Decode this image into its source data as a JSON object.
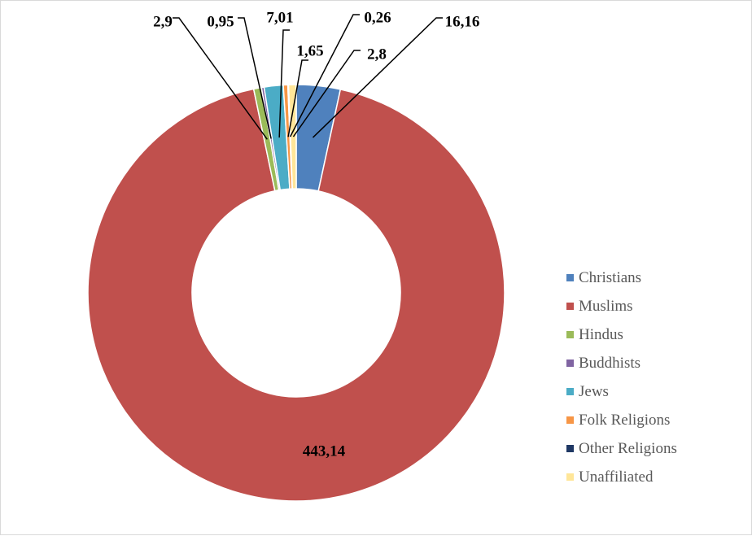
{
  "chart_data": {
    "type": "pie",
    "variant": "donut",
    "title": "",
    "categories": [
      "Christians",
      "Muslims",
      "Hindus",
      "Buddhists",
      "Jews",
      "Folk Religions",
      "Other Religions",
      "Unaffiliated"
    ],
    "values": [
      16.16,
      443.14,
      2.9,
      0.95,
      7.01,
      1.65,
      0.26,
      2.8
    ],
    "value_labels": [
      "16,16",
      "443,14",
      "2,9",
      "0,95",
      "7,01",
      "1,65",
      "0,26",
      "2,8"
    ],
    "colors": [
      "#4f81bd",
      "#c0504d",
      "#9bbb59",
      "#8064a2",
      "#4bacc6",
      "#f79646",
      "#1f3864",
      "#ffe699"
    ],
    "legend_position": "right"
  }
}
